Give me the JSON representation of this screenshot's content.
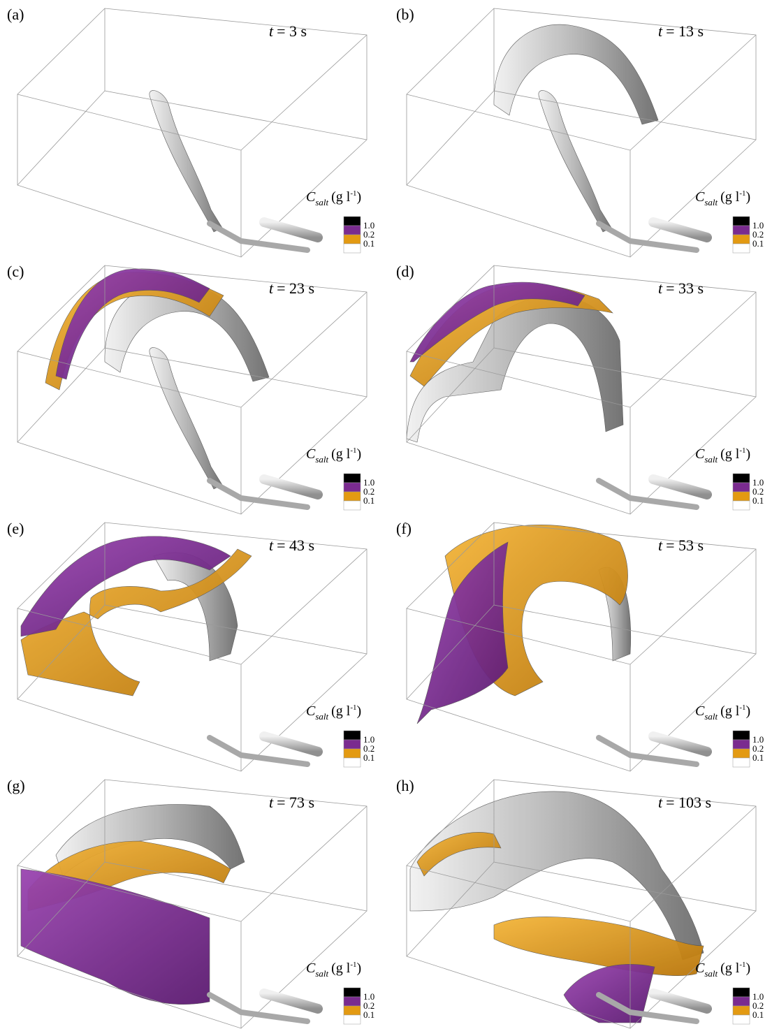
{
  "panels": [
    {
      "label": "(a)",
      "time_var": "t",
      "time": "= 3 s"
    },
    {
      "label": "(b)",
      "time_var": "t",
      "time": "= 13 s"
    },
    {
      "label": "(c)",
      "time_var": "t",
      "time": "= 23 s"
    },
    {
      "label": "(d)",
      "time_var": "t",
      "time": "= 33 s"
    },
    {
      "label": "(e)",
      "time_var": "t",
      "time": "= 43 s"
    },
    {
      "label": "(f)",
      "time_var": "t",
      "time": "= 53 s"
    },
    {
      "label": "(g)",
      "time_var": "t",
      "time": "= 73 s"
    },
    {
      "label": "(h)",
      "time_var": "t",
      "time": "= 103 s"
    }
  ],
  "legend": {
    "symbol": "C",
    "subscript": "salt",
    "unit": "(g l",
    "exponent": "-1",
    "close": ")",
    "colors": [
      "#000000",
      "#7a2b8f",
      "#e39a12",
      "#ffffff"
    ],
    "labels": [
      "1.0",
      "0.2",
      "0.1"
    ]
  }
}
